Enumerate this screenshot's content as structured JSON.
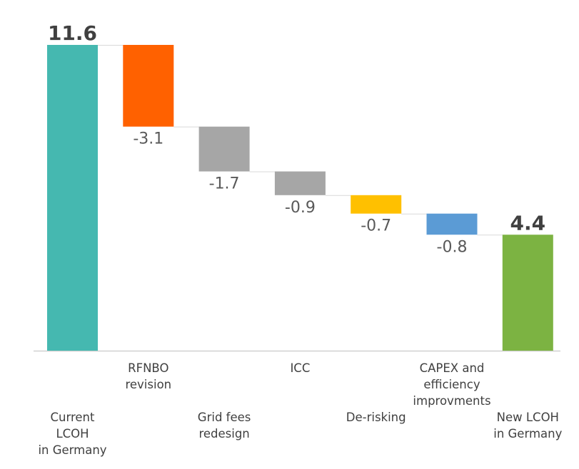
{
  "chart_data": {
    "type": "waterfall",
    "title": "",
    "xlabel": "",
    "ylabel": "",
    "ylim": [
      0,
      11.6
    ],
    "grid": false,
    "legend": "none",
    "categories": [
      [
        "Current",
        "LCOH",
        "in Germany"
      ],
      [
        "RFNBO",
        "revision"
      ],
      [
        "Grid fees",
        "redesign"
      ],
      [
        "ICC"
      ],
      [
        "De-risking"
      ],
      [
        "CAPEX and",
        "efficiency",
        "improvments"
      ],
      [
        "New LCOH",
        "in Germany"
      ]
    ],
    "values": [
      11.6,
      -3.1,
      -1.7,
      -0.9,
      -0.7,
      -0.8,
      4.4
    ],
    "labels": [
      "11.6",
      "-3.1",
      "-1.7",
      "-0.9",
      "-0.7",
      "-0.8",
      "4.4"
    ],
    "kinds": [
      "total",
      "delta",
      "delta",
      "delta",
      "delta",
      "delta",
      "total"
    ],
    "colors": [
      "#45B8B0",
      "#FF6100",
      "#A6A6A6",
      "#A6A6A6",
      "#FFC000",
      "#5B9BD5",
      "#7CB342"
    ]
  }
}
